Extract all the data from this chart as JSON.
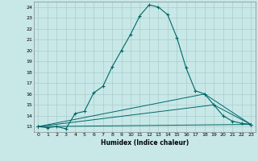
{
  "xlabel": "Humidex (Indice chaleur)",
  "ylabel": "",
  "bg_color": "#c8e8e8",
  "line_color": "#006666",
  "grid_color": "#aacccc",
  "xlim": [
    -0.5,
    23.5
  ],
  "ylim": [
    12.5,
    24.5
  ],
  "yticks": [
    13,
    14,
    15,
    16,
    17,
    18,
    19,
    20,
    21,
    22,
    23,
    24
  ],
  "xticks": [
    0,
    1,
    2,
    3,
    4,
    5,
    6,
    7,
    8,
    9,
    10,
    11,
    12,
    13,
    14,
    15,
    16,
    17,
    18,
    19,
    20,
    21,
    22,
    23
  ],
  "series": [
    {
      "x": [
        0,
        1,
        2,
        3,
        4,
        5,
        6,
        7,
        8,
        9,
        10,
        11,
        12,
        13,
        14,
        15,
        16,
        17,
        18,
        19,
        20,
        21,
        22,
        23
      ],
      "y": [
        13,
        12.9,
        13,
        12.8,
        14.2,
        14.4,
        16.1,
        16.7,
        18.5,
        20.0,
        21.5,
        23.2,
        24.2,
        24.0,
        23.3,
        21.2,
        18.4,
        16.3,
        16.0,
        15.0,
        14.0,
        13.5,
        13.3,
        13.2
      ]
    },
    {
      "x": [
        0,
        23
      ],
      "y": [
        13,
        13.2
      ]
    },
    {
      "x": [
        0,
        19,
        23
      ],
      "y": [
        13,
        15.0,
        13.2
      ]
    },
    {
      "x": [
        0,
        18,
        23
      ],
      "y": [
        13,
        16.0,
        13.2
      ]
    }
  ]
}
